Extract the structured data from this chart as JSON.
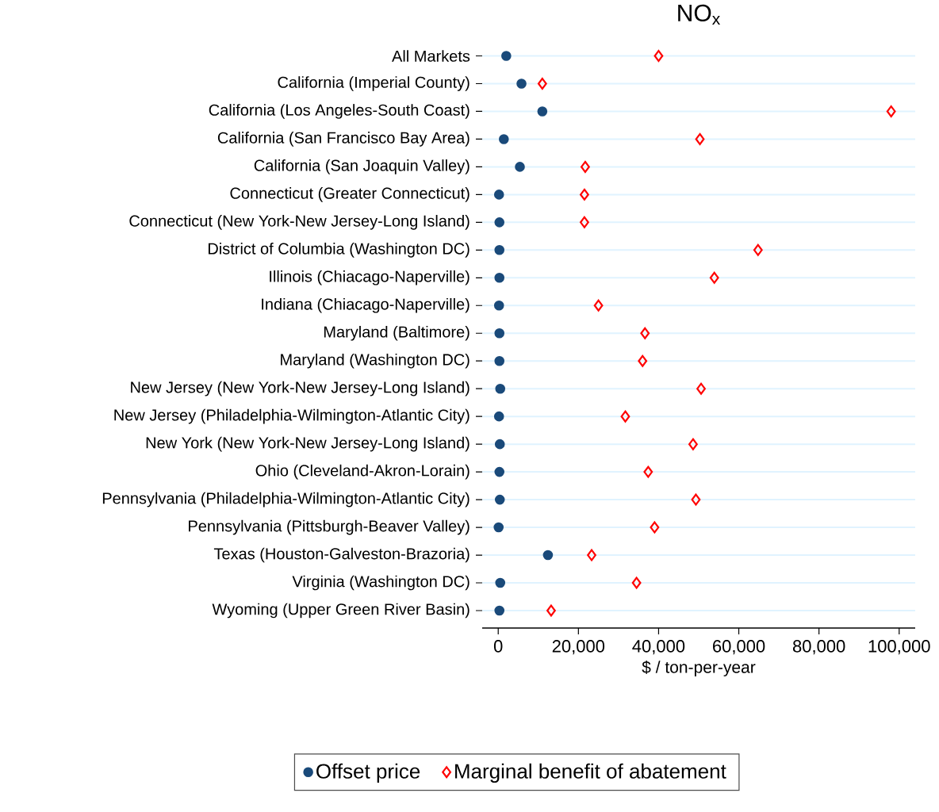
{
  "chart_data": {
    "type": "scatter",
    "orientation": "horizontal",
    "title": "NO$_{x}$",
    "xlabel": "$ / ton-per-year",
    "categories": [
      "All Markets",
      "California (Imperial County)",
      "California (Los Angeles-South Coast)",
      "California (San Francisco Bay Area)",
      "California (San Joaquin Valley)",
      "Connecticut (Greater Connecticut)",
      "Connecticut (New York-New Jersey-Long Island)",
      "District of Columbia (Washington DC)",
      "Illinois (Chiacago-Naperville)",
      "Indiana (Chiacago-Naperville)",
      "Maryland (Baltimore)",
      "Maryland (Washington DC)",
      "New Jersey (New York-New Jersey-Long Island)",
      "New Jersey (Philadelphia-Wilmington-Atlantic City)",
      "New York (New York-New Jersey-Long Island)",
      "Ohio (Cleveland-Akron-Lorain)",
      "Pennsylvania (Philadelphia-Wilmington-Atlantic City)",
      "Pennsylvania (Pittsburgh-Beaver Valley)",
      "Texas (Houston-Galveston-Brazoria)",
      "Virginia (Washington DC)",
      "Wyoming (Upper Green River Basin)"
    ],
    "series": [
      {
        "name": "Offset price",
        "color": "#1a4a7a",
        "marker": "circle",
        "values": [
          2000,
          5800,
          11000,
          1400,
          5400,
          200,
          300,
          300,
          300,
          200,
          300,
          300,
          500,
          200,
          400,
          300,
          400,
          100,
          12400,
          500,
          300
        ]
      },
      {
        "name": "Marginal benefit of abatement",
        "color": "#ff0000",
        "marker": "diamond",
        "values": [
          40000,
          11000,
          98000,
          50300,
          21700,
          21500,
          21500,
          64800,
          53900,
          25000,
          36600,
          36000,
          50600,
          31700,
          48600,
          37400,
          49300,
          39000,
          23300,
          34500,
          13200
        ]
      }
    ],
    "xlim": [
      -4000,
      104000
    ],
    "xticks": [
      0,
      {
        "value": 20000,
        "label": "20,000"
      },
      {
        "value": 40000,
        "label": "40,000"
      },
      {
        "value": 60000,
        "label": "60,000"
      },
      {
        "value": 80000,
        "label": "80,000"
      },
      {
        "value": 100000,
        "label": "100,000"
      }
    ],
    "grid": "y",
    "legend": "bottom"
  }
}
